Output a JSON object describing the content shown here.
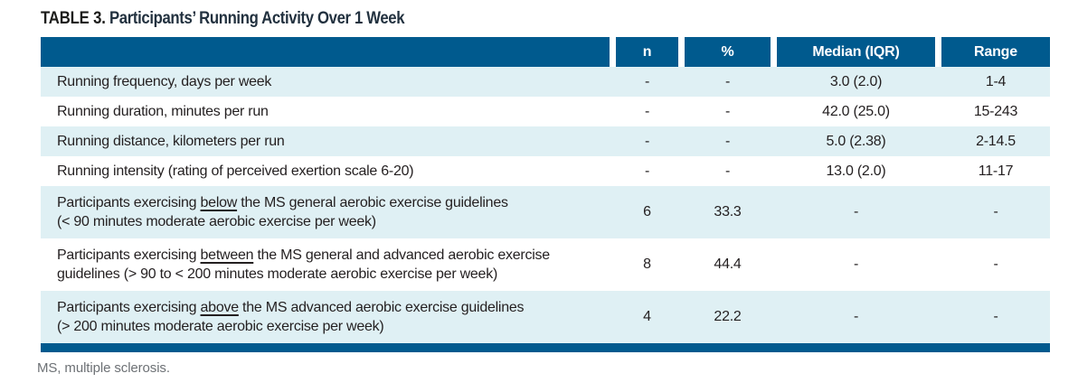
{
  "title": {
    "label": "TABLE 3.",
    "text": " Participants’ Running Activity Over 1 Week"
  },
  "table": {
    "header": [
      "",
      "n",
      "%",
      "Median (IQR)",
      "Range"
    ],
    "rows": [
      {
        "label": "Running frequency, days per week",
        "n": "-",
        "pct": "-",
        "median": "3.0 (2.0)",
        "range": "1-4"
      },
      {
        "label": "Running duration, minutes per run",
        "n": "-",
        "pct": "-",
        "median": "42.0 (25.0)",
        "range": "15-243"
      },
      {
        "label": "Running distance, kilometers per run",
        "n": "-",
        "pct": "-",
        "median": "5.0 (2.38)",
        "range": "2-14.5"
      },
      {
        "label": "Running intensity (rating of perceived exertion scale 6-20)",
        "n": "-",
        "pct": "-",
        "median": "13.0 (2.0)",
        "range": "11-17"
      },
      {
        "label_prefix": "Participants exercising ",
        "label_underline": "below",
        "label_suffix": " the MS general aerobic exercise guidelines",
        "label_line2": "(< 90 minutes moderate aerobic exercise per week)",
        "n": "6",
        "pct": "33.3",
        "median": "-",
        "range": "-"
      },
      {
        "label_prefix": "Participants exercising ",
        "label_underline": "between",
        "label_suffix": " the MS general and advanced aerobic exercise",
        "label_line2": "guidelines (> 90 to < 200 minutes moderate aerobic exercise per week)",
        "n": "8",
        "pct": "44.4",
        "median": "-",
        "range": "-"
      },
      {
        "label_prefix": "Participants exercising ",
        "label_underline": "above",
        "label_suffix": " the MS advanced aerobic exercise guidelines",
        "label_line2": "(> 200 minutes moderate aerobic exercise per week)",
        "n": "4",
        "pct": "22.2",
        "median": "-",
        "range": "-"
      }
    ]
  },
  "footnote": "MS, multiple sclerosis.",
  "colors": {
    "header_blue": "#005a8e",
    "row_light_blue": "#dff0f4",
    "title_dark": "#22313f",
    "body_text": "#231f20",
    "footnote_gray": "#6d7175",
    "header_text": "#ffffff"
  }
}
